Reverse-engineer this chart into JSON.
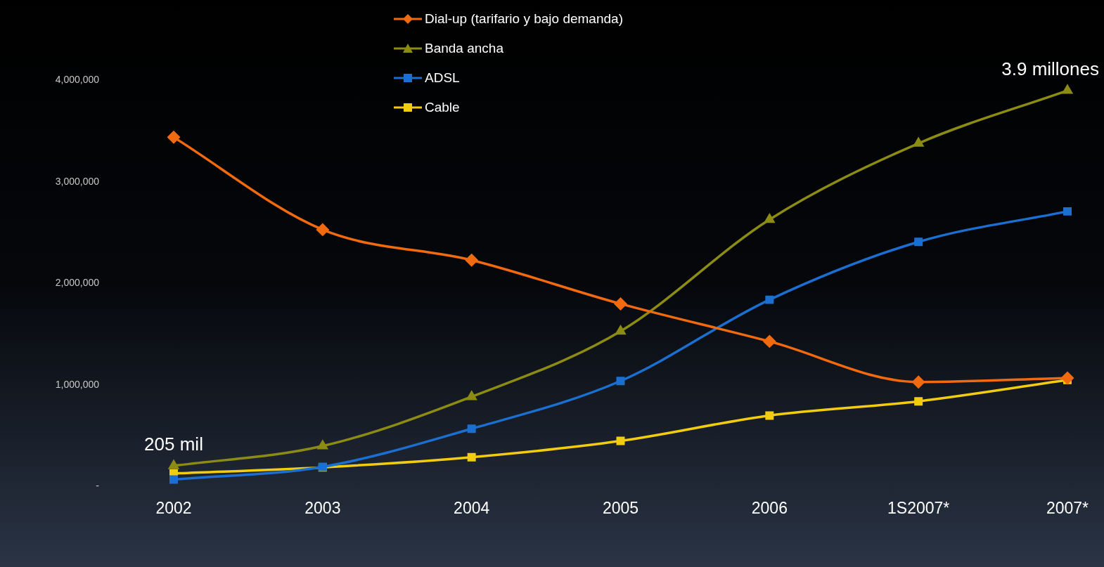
{
  "chart_data": {
    "type": "line",
    "categories": [
      "2002",
      "2003",
      "2004",
      "2005",
      "2006",
      "1S2007*",
      "2007*"
    ],
    "series": [
      {
        "name": "Dial-up (tarifario y bajo demanda)",
        "color": "#f26a10",
        "marker": "diamond",
        "values": [
          3440000,
          2530000,
          2230000,
          1800000,
          1430000,
          1030000,
          1070000
        ]
      },
      {
        "name": "Banda ancha",
        "color": "#8c8c14",
        "marker": "triangle",
        "values": [
          205000,
          400000,
          885000,
          1530000,
          2630000,
          3380000,
          3900000
        ]
      },
      {
        "name": "ADSL",
        "color": "#1a6fd0",
        "marker": "square",
        "values": [
          70000,
          195000,
          570000,
          1040000,
          1840000,
          2410000,
          2710000
        ]
      },
      {
        "name": "Cable",
        "color": "#f2cc10",
        "marker": "square",
        "values": [
          130000,
          190000,
          290000,
          450000,
          700000,
          840000,
          1050000
        ]
      }
    ],
    "ylim": [
      0,
      4000000
    ],
    "yticks": [
      {
        "value": 0,
        "label": "-"
      },
      {
        "value": 1000000,
        "label": "1,000,000"
      },
      {
        "value": 2000000,
        "label": "2,000,000"
      },
      {
        "value": 3000000,
        "label": "3,000,000"
      },
      {
        "value": 4000000,
        "label": "4,000,000"
      }
    ],
    "annotations": [
      {
        "text": "205 mil",
        "x": "2002",
        "y": 205000
      },
      {
        "text": "3.9 millones",
        "x": "2007*",
        "y": 3900000
      }
    ],
    "legend": "top",
    "grid": false
  }
}
